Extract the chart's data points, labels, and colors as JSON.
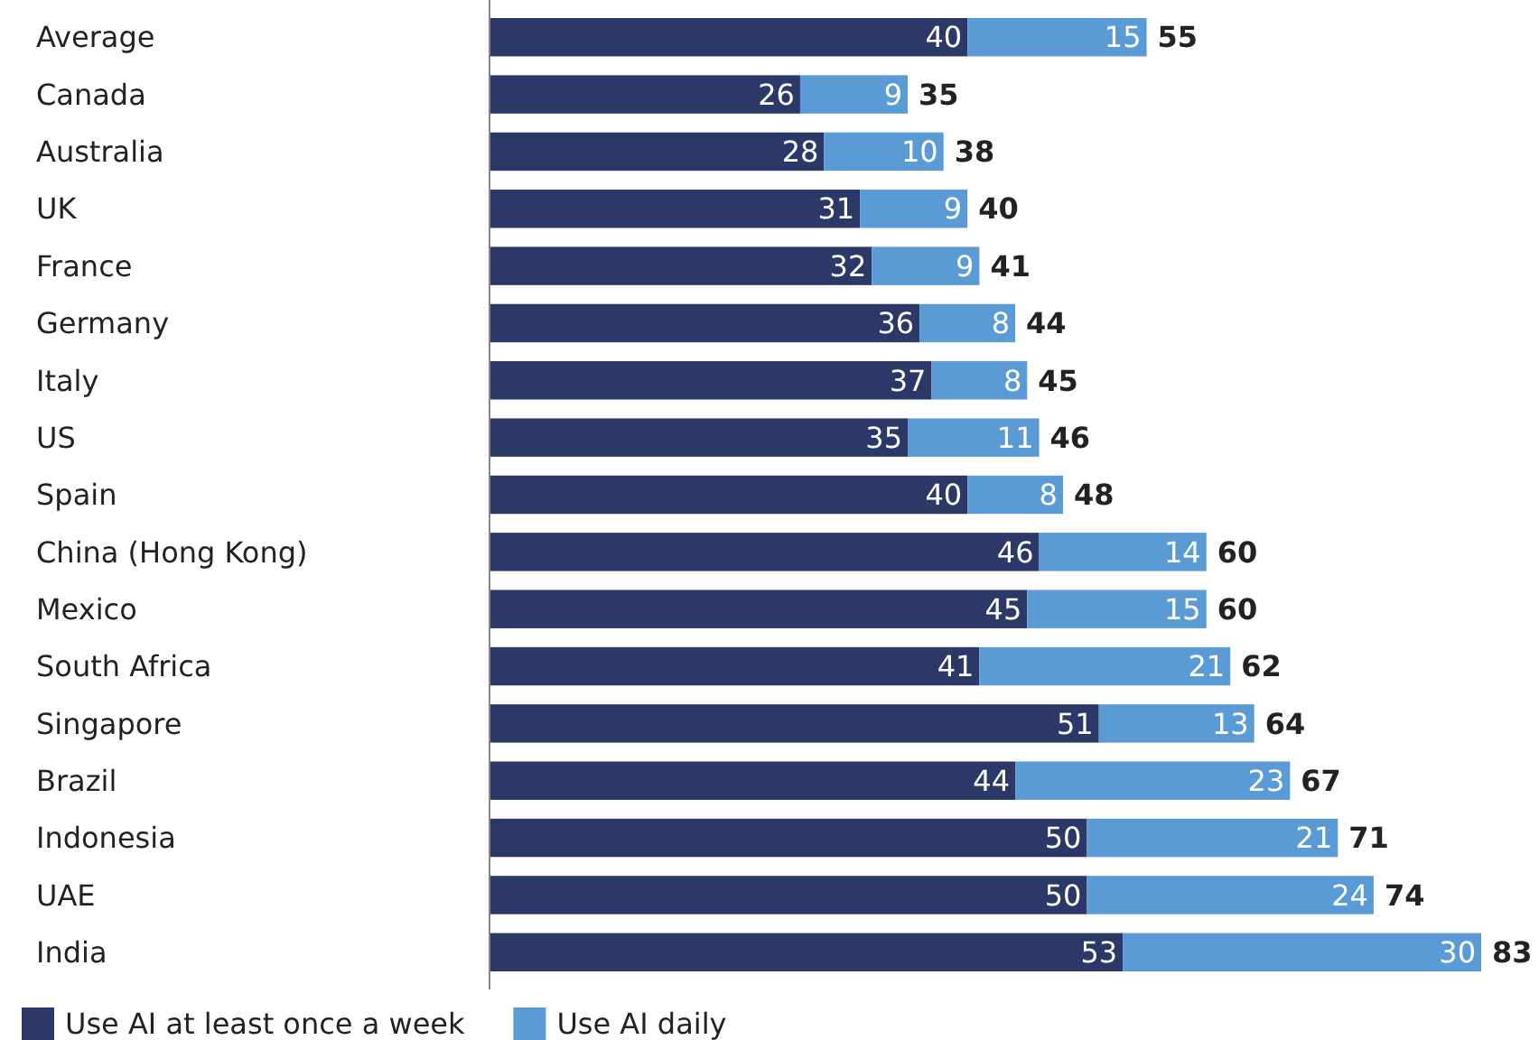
{
  "chart_data": {
    "type": "bar",
    "orientation": "horizontal",
    "stacked": true,
    "data_labels": true,
    "tick_labels": "y",
    "legend": "bottom left",
    "categories": [
      "Average",
      "Canada",
      "Australia",
      "UK",
      "France",
      "Germany",
      "Italy",
      "US",
      "Spain",
      "China (Hong Kong)",
      "Mexico",
      "South Africa",
      "Singapore",
      "Brazil",
      "Indonesia",
      "UAE",
      "India"
    ],
    "series": [
      {
        "name": "Use AI at least once a week",
        "color": "#2b3868",
        "values": [
          40,
          26,
          28,
          31,
          32,
          36,
          37,
          35,
          40,
          46,
          45,
          41,
          51,
          44,
          50,
          50,
          53
        ]
      },
      {
        "name": "Use AI daily",
        "color": "#5b9bd5",
        "values": [
          15,
          9,
          10,
          9,
          9,
          8,
          8,
          11,
          8,
          14,
          15,
          21,
          13,
          23,
          21,
          24,
          30
        ]
      }
    ],
    "totals": [
      "55",
      "35",
      "38",
      "40",
      "41",
      "44",
      "45",
      "46",
      "48",
      "60",
      "60",
      "62",
      "64",
      "67",
      "71",
      "74",
      "83"
    ]
  }
}
